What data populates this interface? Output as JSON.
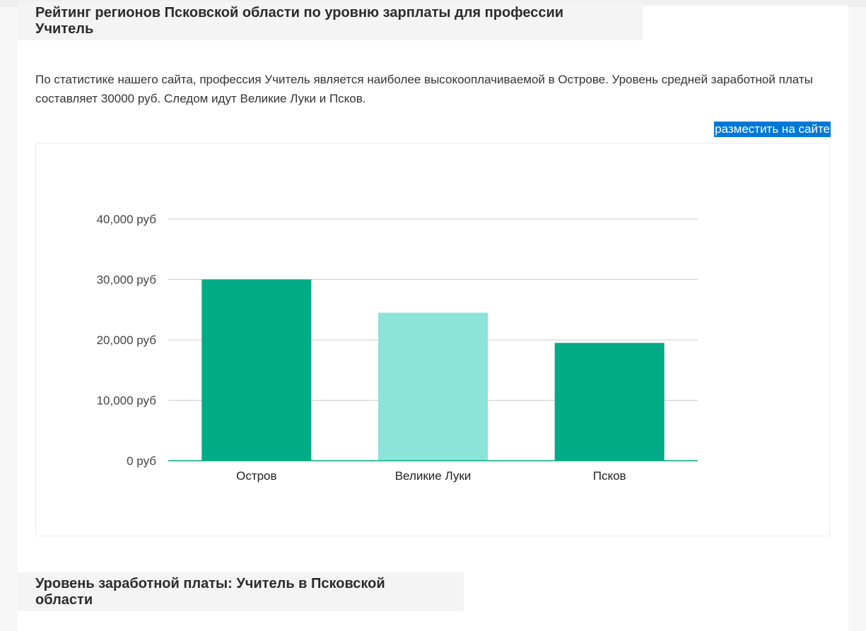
{
  "section1": {
    "title": "Рейтинг регионов Псковской области по уровню зарплаты для профессии Учитель",
    "description": "По статистике нашего сайта, профессия Учитель является наиболее высокооплачиваемой в Острове. Уровень средней заработной платы составляет 30000 руб. Следом идут Великие Луки и Псков.",
    "embed_link": "разместить на сайте"
  },
  "section2": {
    "title": "Уровень заработной платы: Учитель в Псковской области"
  },
  "chart_data": {
    "type": "bar",
    "categories": [
      "Остров",
      "Великие Луки",
      "Псков"
    ],
    "values": [
      30000,
      24500,
      19500
    ],
    "bar_colors": [
      "#00ab85",
      "#8ce3d8",
      "#00ab85"
    ],
    "ylim": [
      0,
      40000
    ],
    "yticks": [
      0,
      10000,
      20000,
      30000,
      40000
    ],
    "ytick_labels": [
      "0 руб",
      "10,000 руб",
      "20,000 руб",
      "30,000 руб",
      "40,000 руб"
    ],
    "grid": true,
    "baseline_color": "#00ab85",
    "gridline_color": "#cccccc"
  }
}
